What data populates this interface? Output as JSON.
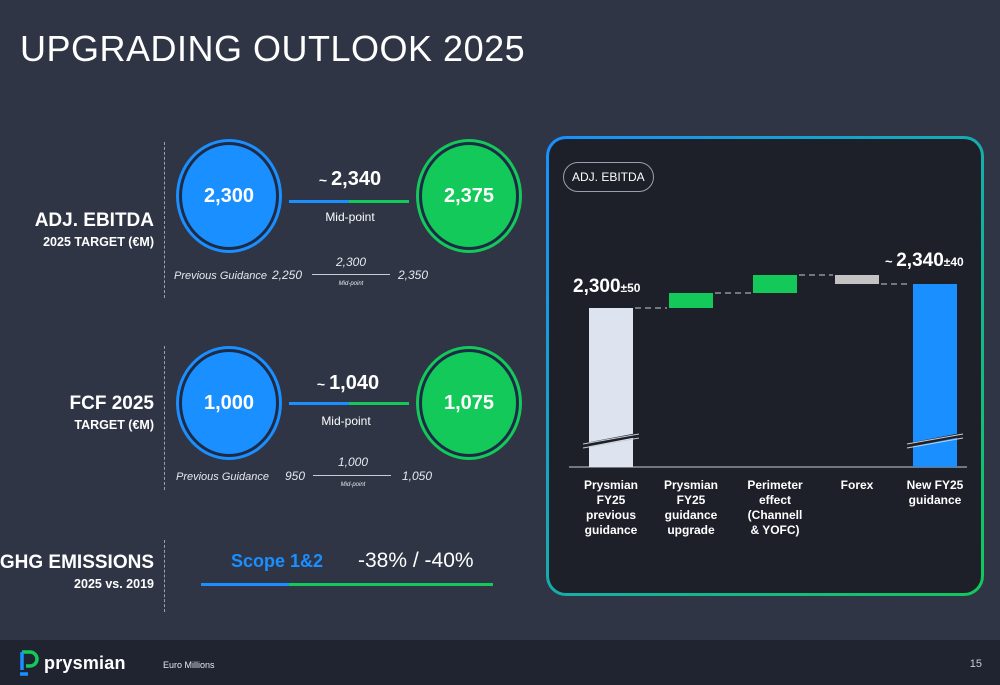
{
  "title": "UPGRADING OUTLOOK 2025",
  "ebitda_row": {
    "label": "ADJ. EBITDA",
    "sublabel": "2025 TARGET (€M)",
    "low": "2,300",
    "high": "2,375",
    "tilde": "~",
    "mid": "2,340",
    "mid_label": "Mid-point",
    "prev_label": "Previous Guidance",
    "prev_low": "2,250",
    "prev_mid": "2,300",
    "prev_mid_label": "Mid-point",
    "prev_high": "2,350"
  },
  "fcf_row": {
    "label": "FCF 2025",
    "sublabel": "TARGET (€M)",
    "low": "1,000",
    "high": "1,075",
    "tilde": "~",
    "mid": "1,040",
    "mid_label": "Mid-point",
    "prev_label": "Previous Guidance",
    "prev_low": "950",
    "prev_mid": "1,000",
    "prev_mid_label": "Mid-point",
    "prev_high": "1,050"
  },
  "ghg_row": {
    "label": "GHG EMISSIONS",
    "sublabel": "2025 vs. 2019",
    "scope": "Scope 1&2",
    "value": "-38% / -40%"
  },
  "chart_data": {
    "type": "bar",
    "subtype": "waterfall",
    "title": "ADJ. EBITDA",
    "categories": [
      [
        "Prysmian",
        "FY25",
        "previous",
        "guidance"
      ],
      [
        "Prysmian",
        "FY25",
        "guidance",
        "upgrade"
      ],
      [
        "Perimeter",
        "effect",
        "(Channell",
        "& YOFC)"
      ],
      [
        "Forex"
      ],
      [
        "New FY25",
        "guidance"
      ]
    ],
    "start_label": "2,300",
    "start_pm": "±50",
    "end_tilde": "~",
    "end_label": "2,340",
    "end_pm": "±40",
    "start_value": 2300,
    "steps": [
      {
        "value": 25,
        "color": "#12c95a"
      },
      {
        "value": 30,
        "color": "#12c95a"
      },
      {
        "value": -15,
        "color": "#c3c3c3"
      }
    ],
    "end_value": 2340,
    "start_color": "#dde3ef",
    "end_color": "#1a8fff",
    "ylim": [
      2200,
      2400
    ],
    "axis_break": true
  },
  "footer": {
    "logo_text": "prysmian",
    "units": "Euro Millions",
    "page": "15"
  }
}
